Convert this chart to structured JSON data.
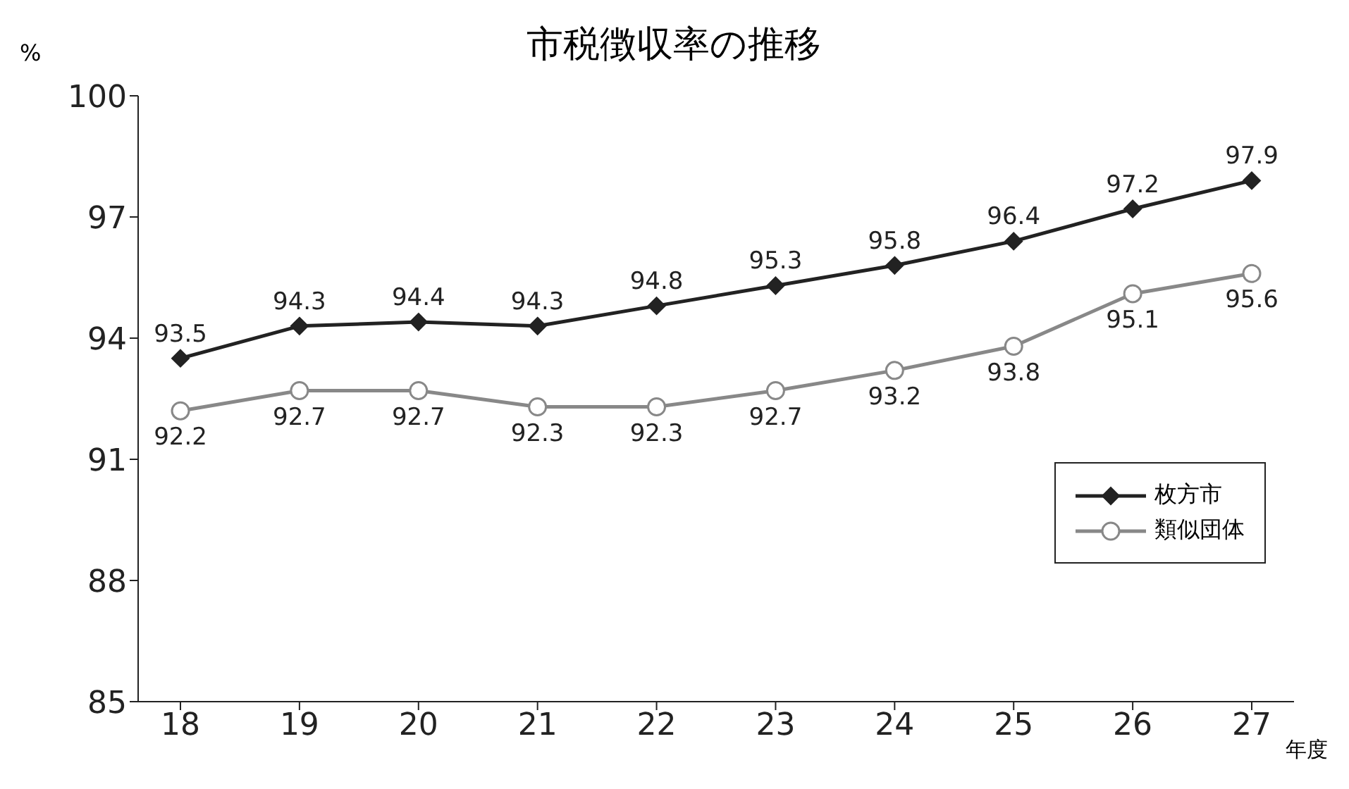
{
  "chart_data": {
    "type": "line",
    "title": "市税徴収率の推移",
    "ylabel": "%",
    "xlabel": "年度",
    "categories": [
      "18",
      "19",
      "20",
      "21",
      "22",
      "23",
      "24",
      "25",
      "26",
      "27"
    ],
    "series": [
      {
        "name": "枚方市",
        "color": "#222222",
        "marker": "diamond",
        "values": [
          93.5,
          94.3,
          94.4,
          94.3,
          94.8,
          95.3,
          95.8,
          96.4,
          97.2,
          97.9
        ]
      },
      {
        "name": "類似団体",
        "color": "#888888",
        "marker": "circle",
        "values": [
          92.2,
          92.7,
          92.7,
          92.3,
          92.3,
          92.7,
          93.2,
          93.8,
          95.1,
          95.6
        ]
      }
    ],
    "ylim": [
      85,
      100
    ],
    "yticks": [
      85,
      88,
      91,
      94,
      97,
      100
    ],
    "grid": false,
    "legend": "bottom right",
    "data_labels": true,
    "line_style": "solid"
  }
}
